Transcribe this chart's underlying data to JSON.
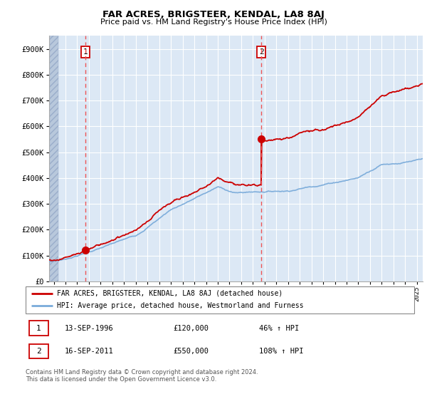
{
  "title": "FAR ACRES, BRIGSTEER, KENDAL, LA8 8AJ",
  "subtitle": "Price paid vs. HM Land Registry's House Price Index (HPI)",
  "legend_line1": "FAR ACRES, BRIGSTEER, KENDAL, LA8 8AJ (detached house)",
  "legend_line2": "HPI: Average price, detached house, Westmorland and Furness",
  "transaction1_date": "13-SEP-1996",
  "transaction1_price": "£120,000",
  "transaction1_hpi": "46% ↑ HPI",
  "transaction2_date": "16-SEP-2011",
  "transaction2_price": "£550,000",
  "transaction2_hpi": "108% ↑ HPI",
  "footnote": "Contains HM Land Registry data © Crown copyright and database right 2024.\nThis data is licensed under the Open Government Licence v3.0.",
  "hpi_color": "#7aabda",
  "price_color": "#cc0000",
  "dashed_line_color": "#ee5555",
  "marker_color": "#cc0000",
  "chart_bg_color": "#dce8f5",
  "hatch_color": "#c0c8d8",
  "ylim": [
    0,
    950000
  ],
  "xlim_start": 1993.6,
  "xlim_end": 2025.5,
  "t1_x": 1996.71,
  "t2_x": 2011.71,
  "hatch_end": 1994.42
}
